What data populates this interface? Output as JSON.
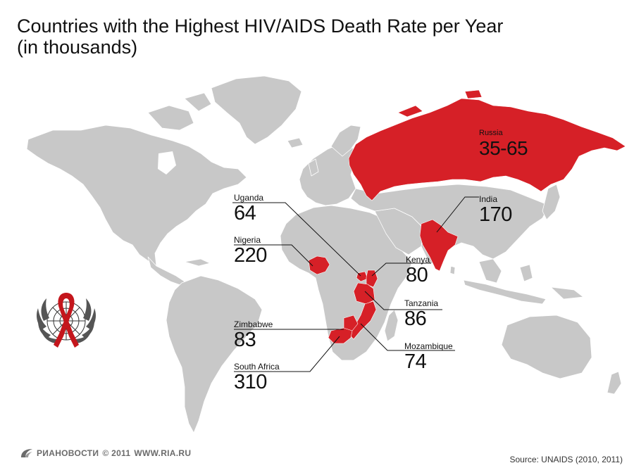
{
  "title": {
    "line1": "Countries with the Highest HIV/AIDS Death Rate per Year",
    "line2": "(in thousands)"
  },
  "countries": {
    "russia": {
      "name": "Russia",
      "value": "35-65"
    },
    "india": {
      "name": "India",
      "value": "170"
    },
    "uganda": {
      "name": "Uganda",
      "value": "64"
    },
    "nigeria": {
      "name": "Nigeria",
      "value": "220"
    },
    "kenya": {
      "name": "Kenya",
      "value": "80"
    },
    "tanzania": {
      "name": "Tanzania",
      "value": "86"
    },
    "zimbabwe": {
      "name": "Zimbabwe",
      "value": "83"
    },
    "mozambique": {
      "name": "Mozambique",
      "value": "74"
    },
    "south_africa": {
      "name": "South Africa",
      "value": "310"
    }
  },
  "footer": {
    "brand": "РИАНОВОСТИ",
    "copyright": "© 2011",
    "website": "WWW.RIA.RU",
    "source": "Source: UNAIDS (2010, 2011)"
  },
  "colors": {
    "highlight": "#d62027",
    "land": "#c8c8c8",
    "leader": "#111111",
    "brand_gray": "#6b6b6b"
  },
  "icons": {
    "emblem": "un-emblem-with-red-ribbon-icon",
    "brand_logo": "ria-novosti-logo-icon"
  }
}
